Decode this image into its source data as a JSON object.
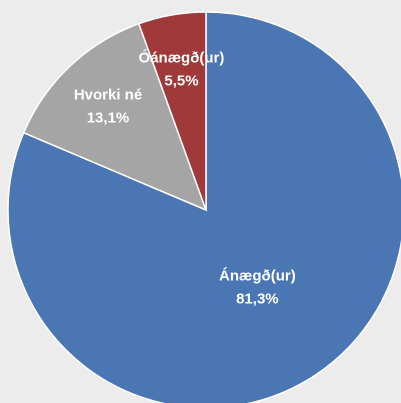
{
  "chart_data": {
    "type": "pie",
    "categories": [
      "Ánægð(ur)",
      "Hvorki né",
      "Óánægð(ur)"
    ],
    "values": [
      81.3,
      13.1,
      5.5
    ],
    "value_labels": [
      "81,3%",
      "13,1%",
      "5,5%"
    ],
    "colors": [
      "#4a76b4",
      "#a5a5a5",
      "#a0393a"
    ]
  }
}
